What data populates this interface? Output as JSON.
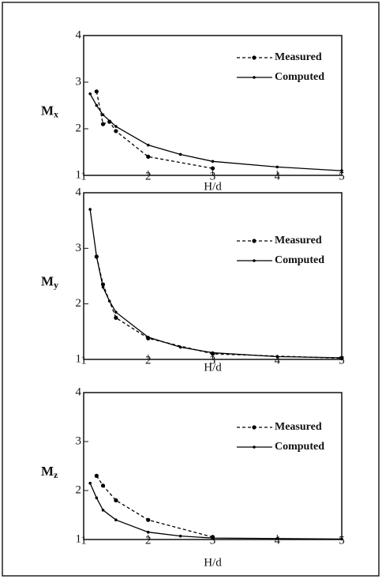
{
  "chart_data": [
    {
      "type": "line",
      "xlabel": "H/d",
      "ylabel": "M",
      "ylabel_sub": "x",
      "xlim": [
        1,
        5
      ],
      "xticks": [
        1,
        2,
        3,
        4,
        5
      ],
      "ylim": [
        1,
        4
      ],
      "yticks": [
        1,
        2,
        3,
        4
      ],
      "legend": "upper right",
      "series": [
        {
          "name": "Measured",
          "color": "#000000",
          "style": "dashed",
          "x": [
            1.2,
            1.3,
            1.4,
            1.5,
            2,
            3
          ],
          "values": [
            2.8,
            2.1,
            2.15,
            1.95,
            1.4,
            1.15
          ]
        },
        {
          "name": "Computed",
          "color": "#000000",
          "style": "solid",
          "x": [
            1.1,
            1.2,
            1.3,
            1.5,
            2,
            2.5,
            3,
            4,
            5
          ],
          "values": [
            2.75,
            2.5,
            2.3,
            2.05,
            1.65,
            1.45,
            1.3,
            1.18,
            1.1
          ]
        }
      ]
    },
    {
      "type": "line",
      "xlabel": "H/d",
      "ylabel": "M",
      "ylabel_sub": "y",
      "xlim": [
        1,
        5
      ],
      "xticks": [
        1,
        2,
        3,
        4,
        5
      ],
      "ylim": [
        1,
        4
      ],
      "yticks": [
        1,
        2,
        3,
        4
      ],
      "legend": "upper right",
      "series": [
        {
          "name": "Measured",
          "color": "#000000",
          "style": "dashed",
          "x": [
            1.2,
            1.3,
            1.5,
            2,
            3,
            5
          ],
          "values": [
            2.85,
            2.35,
            1.75,
            1.38,
            1.1,
            1.02
          ]
        },
        {
          "name": "Computed",
          "color": "#000000",
          "style": "solid",
          "x": [
            1.1,
            1.2,
            1.3,
            1.4,
            1.5,
            2,
            2.5,
            3,
            4,
            5
          ],
          "values": [
            3.7,
            2.85,
            2.3,
            2.05,
            1.85,
            1.4,
            1.22,
            1.12,
            1.05,
            1.03
          ]
        }
      ]
    },
    {
      "type": "line",
      "xlabel": "H/d",
      "ylabel": "M",
      "ylabel_sub": "z",
      "xlim": [
        1,
        5
      ],
      "xticks": [
        1,
        2,
        3,
        4,
        5
      ],
      "ylim": [
        1,
        4
      ],
      "yticks": [
        1,
        2,
        3,
        4
      ],
      "legend": "upper right",
      "series": [
        {
          "name": "Measured",
          "color": "#000000",
          "style": "dashed",
          "x": [
            1.2,
            1.3,
            1.5,
            2,
            3
          ],
          "values": [
            2.3,
            2.1,
            1.8,
            1.4,
            1.05
          ]
        },
        {
          "name": "Computed",
          "color": "#000000",
          "style": "solid",
          "x": [
            1.1,
            1.2,
            1.3,
            1.5,
            2,
            2.5,
            3,
            4,
            5
          ],
          "values": [
            2.15,
            1.85,
            1.6,
            1.4,
            1.15,
            1.07,
            1.03,
            1.02,
            1.01
          ]
        }
      ]
    }
  ]
}
